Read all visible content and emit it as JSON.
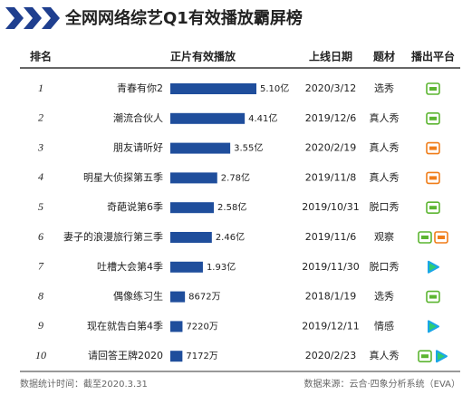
{
  "chart_data": {
    "type": "bar",
    "title": "全网网络综艺Q1有效播放霸屏榜",
    "headers": [
      "排名",
      "正片有效播放",
      "上线日期",
      "题材",
      "播出平台"
    ],
    "ranks": [
      1,
      2,
      3,
      4,
      5,
      6,
      7,
      8,
      9,
      10
    ],
    "categories": [
      "青春有你2",
      "潮流合伙人",
      "朋友请听好",
      "明星大侦探第五季",
      "奇葩说第6季",
      "妻子的浪漫旅行第三季",
      "吐槽大会第4季",
      "偶像练习生",
      "现在就告白第4季",
      "请回答王牌2020"
    ],
    "values": [
      51000,
      44100,
      35500,
      27800,
      25800,
      24600,
      19300,
      8672,
      7220,
      7172
    ],
    "value_labels": [
      "5.10亿",
      "4.41亿",
      "3.55亿",
      "2.78亿",
      "2.58亿",
      "2.46亿",
      "1.93亿",
      "8672万",
      "7220万",
      "7172万"
    ],
    "dates": [
      "2020/3/12",
      "2019/12/6",
      "2020/2/19",
      "2019/11/8",
      "2019/10/31",
      "2019/11/6",
      "2019/11/30",
      "2018/1/19",
      "2019/12/11",
      "2020/2/23"
    ],
    "genres": [
      "选秀",
      "真人秀",
      "真人秀",
      "真人秀",
      "脱口秀",
      "观察",
      "脱口秀",
      "选秀",
      "情感",
      "真人秀"
    ],
    "platform_colors": [
      [
        "#5cb531"
      ],
      [
        "#5cb531"
      ],
      [
        "#f07d1a"
      ],
      [
        "#f07d1a"
      ],
      [
        "#5cb531"
      ],
      [
        "#5cb531",
        "#f07d1a"
      ],
      [
        "#1aa6e8"
      ],
      [
        "#5cb531"
      ],
      [
        "#1aa6e8"
      ],
      [
        "#5cb531",
        "#1aa6e8"
      ]
    ],
    "color": "#1f4e9c",
    "footer_left": "数据统计时间：截至2020.3.31",
    "footer_right": "数据来源：云合·四象分析系统（EVA）"
  }
}
